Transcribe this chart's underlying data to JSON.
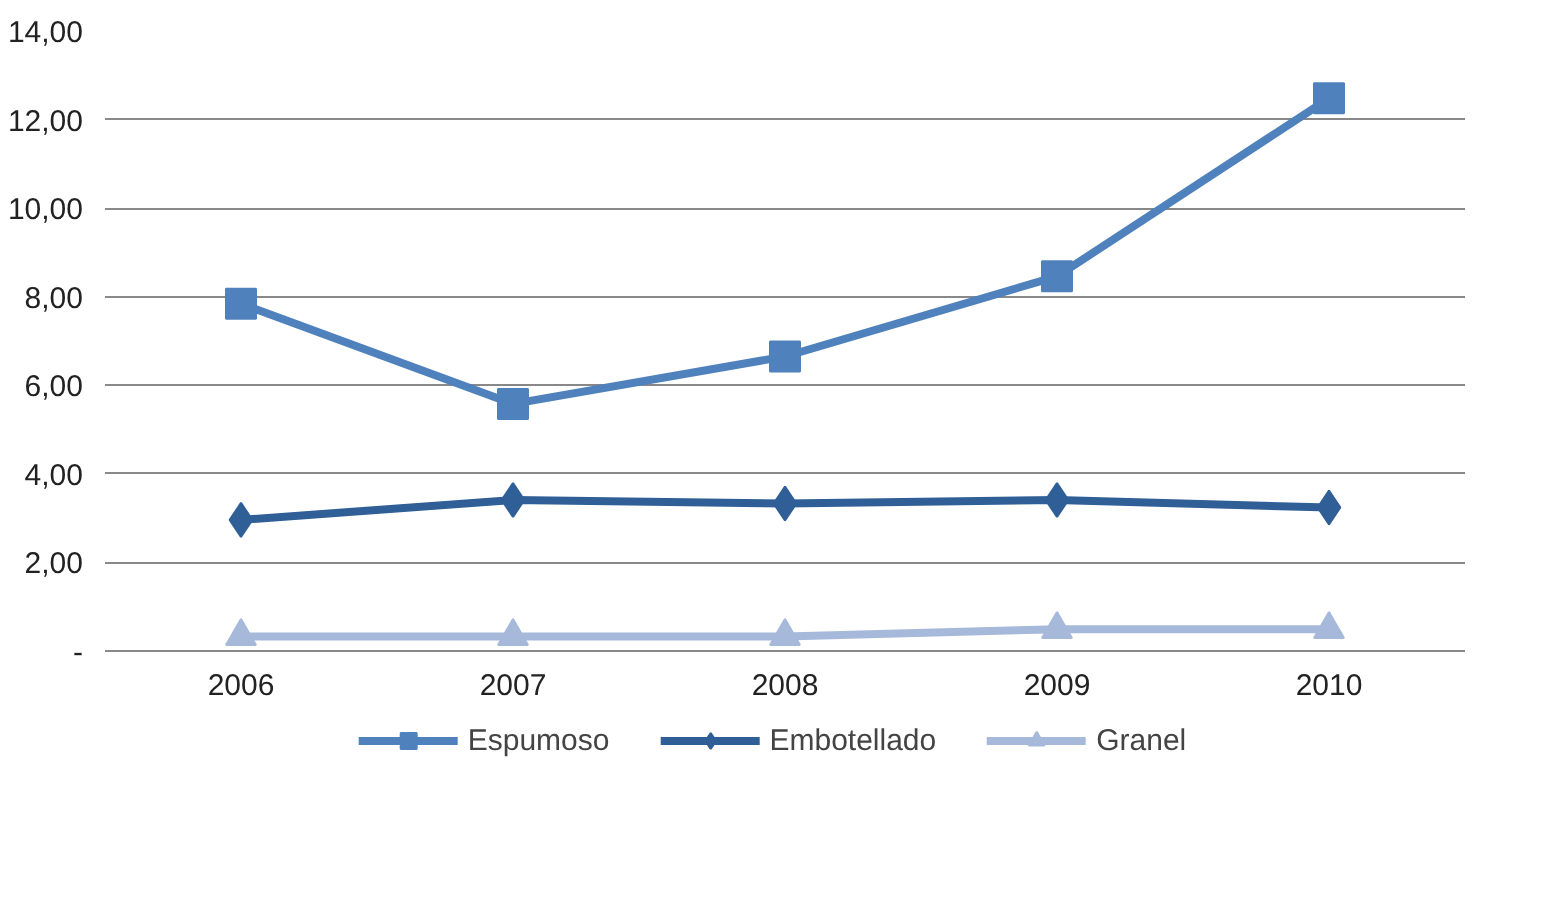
{
  "chart_data": {
    "type": "line",
    "categories": [
      "2006",
      "2007",
      "2008",
      "2009",
      "2010"
    ],
    "series": [
      {
        "name": "Espumoso",
        "color": "#4f81bd",
        "marker": "square",
        "values": [
          7.84,
          5.58,
          6.65,
          8.46,
          12.48
        ]
      },
      {
        "name": "Embotellado",
        "color": "#2f5f96",
        "marker": "diamond",
        "values": [
          2.96,
          3.41,
          3.33,
          3.41,
          3.24
        ]
      },
      {
        "name": "Granel",
        "color": "#a7b9da",
        "marker": "triangle",
        "values": [
          0.33,
          0.33,
          0.33,
          0.49,
          0.49
        ]
      }
    ],
    "ylim": [
      0,
      14
    ],
    "yticks": [
      {
        "value": 0,
        "label": "-"
      },
      {
        "value": 2,
        "label": "2,00"
      },
      {
        "value": 4,
        "label": "4,00"
      },
      {
        "value": 6,
        "label": "6,00"
      },
      {
        "value": 8,
        "label": "8,00"
      },
      {
        "value": 10,
        "label": "10,00"
      },
      {
        "value": 12,
        "label": "12,00"
      },
      {
        "value": 14,
        "label": "14,00"
      }
    ],
    "grid": "y",
    "legend": "bottom",
    "line_style": "solid"
  }
}
